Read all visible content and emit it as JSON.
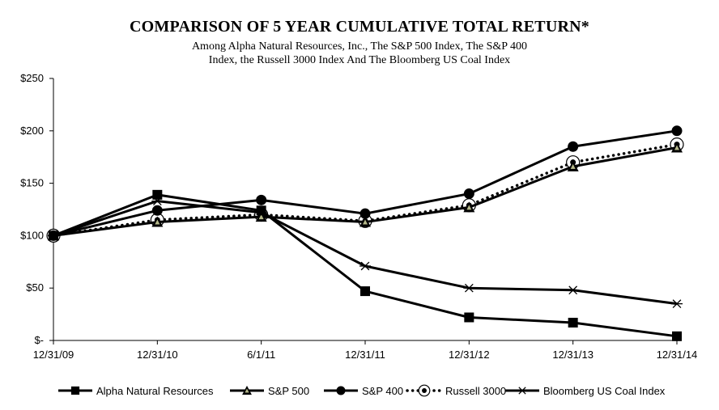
{
  "chart_data": {
    "type": "line",
    "title": "COMPARISON  OF 5 YEAR  CUMULATIVE  TOTAL RETURN*",
    "subtitle_line1": "Among Alpha Natural Resources, Inc., The S&P 500 Index, The S&P 400",
    "subtitle_line2": "Index, the Russell  3000 Index And The Bloomberg US Coal Index",
    "categories": [
      "12/31/09",
      "12/31/10",
      "6/1/11",
      "12/31/11",
      "12/31/12",
      "12/31/13",
      "12/31/14"
    ],
    "y_tick_labels": [
      "$-",
      "$50",
      "$100",
      "$150",
      "$200",
      "$250"
    ],
    "y_tick_values": [
      0,
      50,
      100,
      150,
      200,
      250
    ],
    "ylim": [
      0,
      250
    ],
    "grid": false,
    "legend_position": "bottom",
    "series": [
      {
        "name": "Alpha Natural Resources",
        "marker": "square",
        "dash": "solid",
        "values": [
          100,
          139,
          124,
          47,
          22,
          17,
          4
        ]
      },
      {
        "name": "S&P 500",
        "marker": "triangle",
        "dash": "solid",
        "values": [
          100,
          113,
          118,
          113,
          127,
          166,
          184
        ]
      },
      {
        "name": "S&P 400",
        "marker": "circle",
        "dash": "solid",
        "values": [
          100,
          124,
          134,
          121,
          140,
          185,
          200
        ]
      },
      {
        "name": "Russell 3000",
        "marker": "circle-dot",
        "dash": "dotted",
        "values": [
          100,
          115,
          120,
          114,
          129,
          170,
          187
        ]
      },
      {
        "name": "Bloomberg US Coal Index",
        "marker": "asterisk",
        "dash": "solid",
        "values": [
          100,
          133,
          122,
          71,
          50,
          48,
          35
        ]
      }
    ]
  }
}
